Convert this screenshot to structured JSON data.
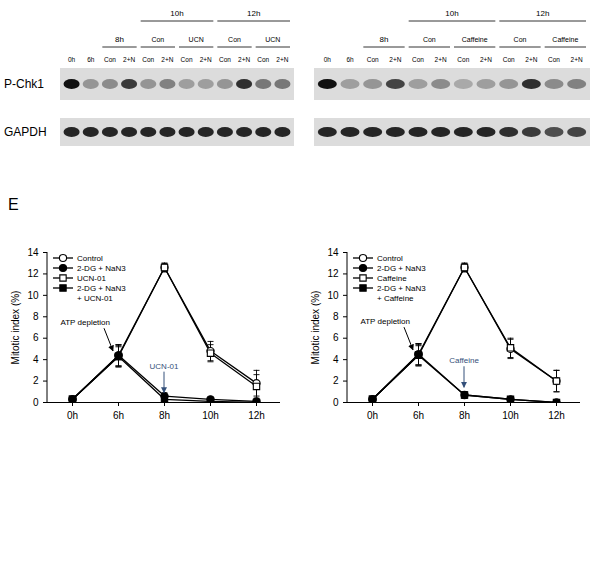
{
  "blot_panel": {
    "row_labels": [
      "P-Chk1",
      "GAPDH"
    ],
    "blots": [
      {
        "lanes": [
          {
            "label": "0h"
          },
          {
            "label": "6h"
          },
          {
            "label": "Con",
            "group": "8h"
          },
          {
            "label": "2+N",
            "group": "8h"
          },
          {
            "label": "Con",
            "group": "10h",
            "subgroup": "Con"
          },
          {
            "label": "2+N",
            "group": "10h",
            "subgroup": "Con"
          },
          {
            "label": "Con",
            "group": "10h",
            "subgroup": "UCN"
          },
          {
            "label": "2+N",
            "group": "10h",
            "subgroup": "UCN"
          },
          {
            "label": "Con",
            "group": "12h",
            "subgroup": "Con"
          },
          {
            "label": "2+N",
            "group": "12h",
            "subgroup": "Con"
          },
          {
            "label": "Con",
            "group": "12h",
            "subgroup": "UCN"
          },
          {
            "label": "2+N",
            "group": "12h",
            "subgroup": "UCN"
          }
        ],
        "bands": [
          [
            1.0,
            0.35,
            0.4,
            0.8,
            0.35,
            0.45,
            0.3,
            0.3,
            0.35,
            0.85,
            0.5,
            0.5
          ],
          [
            0.9,
            0.9,
            0.9,
            0.9,
            0.9,
            0.9,
            0.9,
            0.9,
            0.9,
            0.9,
            0.9,
            0.9
          ]
        ]
      },
      {
        "lanes": [
          {
            "label": "0h"
          },
          {
            "label": "6h"
          },
          {
            "label": "Con",
            "group": "8h"
          },
          {
            "label": "2+N",
            "group": "8h"
          },
          {
            "label": "Con",
            "group": "10h",
            "subgroup": "Con"
          },
          {
            "label": "2+N",
            "group": "10h",
            "subgroup": "Con"
          },
          {
            "label": "Con",
            "group": "10h",
            "subgroup": "Caffeine"
          },
          {
            "label": "2+N",
            "group": "10h",
            "subgroup": "Caffeine"
          },
          {
            "label": "Con",
            "group": "12h",
            "subgroup": "Con"
          },
          {
            "label": "2+N",
            "group": "12h",
            "subgroup": "Con"
          },
          {
            "label": "Con",
            "group": "12h",
            "subgroup": "Caffeine"
          },
          {
            "label": "2+N",
            "group": "12h",
            "subgroup": "Caffeine"
          }
        ],
        "bands": [
          [
            1.0,
            0.3,
            0.35,
            0.75,
            0.3,
            0.4,
            0.25,
            0.3,
            0.35,
            0.85,
            0.4,
            0.45
          ],
          [
            0.9,
            0.9,
            0.9,
            0.9,
            0.9,
            0.9,
            0.9,
            0.9,
            0.85,
            0.8,
            0.7,
            0.75
          ]
        ]
      }
    ]
  },
  "panel_label": "E",
  "chart_data": [
    {
      "type": "line",
      "categories": [
        "0h",
        "6h",
        "8h",
        "10h",
        "12h"
      ],
      "ylabel": "Mitotic index (%)",
      "ylim": [
        0,
        14
      ],
      "yticks": [
        0,
        2,
        4,
        6,
        8,
        10,
        12,
        14
      ],
      "legend": "top-left",
      "series": [
        {
          "name": "Control",
          "color": "#000000",
          "marker": "open-circle",
          "values": [
            0.3,
            4.4,
            12.6,
            4.8,
            1.8
          ],
          "errors": [
            0.1,
            1.0,
            0.4,
            0.9,
            1.2
          ]
        },
        {
          "name": "2-DG + NaN3",
          "color": "#000000",
          "marker": "filled-circle",
          "values": [
            0.3,
            4.4,
            0.6,
            0.3,
            0.1
          ],
          "errors": [
            0.1,
            1.0,
            0.3,
            0.2,
            0.1
          ]
        },
        {
          "name": "UCN-01",
          "color": "#000000",
          "marker": "open-square",
          "values": [
            0.3,
            4.3,
            12.6,
            4.6,
            1.5
          ],
          "errors": [
            0.1,
            1.0,
            0.4,
            0.8,
            1.1
          ]
        },
        {
          "name": "2-DG + NaN3 + UCN-01",
          "color": "#000000",
          "marker": "filled-square",
          "values": [
            0.3,
            4.3,
            0.3,
            0.1,
            0.0
          ],
          "errors": [
            0.1,
            0.9,
            0.2,
            0.1,
            0.1
          ]
        }
      ],
      "annotations": [
        {
          "text": "ATP depletion",
          "x": "6h",
          "color": "#000000"
        },
        {
          "text": "UCN-01",
          "x": "8h",
          "color": "#34507a"
        }
      ]
    },
    {
      "type": "line",
      "categories": [
        "0h",
        "6h",
        "8h",
        "10h",
        "12h"
      ],
      "ylabel": "Mitotic index (%)",
      "ylim": [
        0,
        14
      ],
      "yticks": [
        0,
        2,
        4,
        6,
        8,
        10,
        12,
        14
      ],
      "legend": "top-left",
      "series": [
        {
          "name": "Control",
          "color": "#000000",
          "marker": "open-circle",
          "values": [
            0.3,
            4.5,
            12.6,
            5.0,
            2.0
          ],
          "errors": [
            0.1,
            1.0,
            0.4,
            0.9,
            1.0
          ]
        },
        {
          "name": "2-DG + NaN3",
          "color": "#000000",
          "marker": "filled-circle",
          "values": [
            0.3,
            4.5,
            0.7,
            0.3,
            0.0
          ],
          "errors": [
            0.1,
            1.0,
            0.3,
            0.2,
            0.1
          ]
        },
        {
          "name": "Caffeine",
          "color": "#000000",
          "marker": "open-square",
          "values": [
            0.3,
            4.4,
            12.6,
            5.1,
            2.0
          ],
          "errors": [
            0.1,
            1.0,
            0.4,
            0.9,
            1.0
          ]
        },
        {
          "name": "2-DG + NaN3 + Caffeine",
          "color": "#000000",
          "marker": "filled-square",
          "values": [
            0.3,
            4.4,
            0.7,
            0.3,
            0.0
          ],
          "errors": [
            0.1,
            0.9,
            0.3,
            0.2,
            0.1
          ]
        }
      ],
      "annotations": [
        {
          "text": "ATP depletion",
          "x": "6h",
          "color": "#000000"
        },
        {
          "text": "Caffeine",
          "x": "8h",
          "color": "#34507a"
        }
      ]
    }
  ]
}
